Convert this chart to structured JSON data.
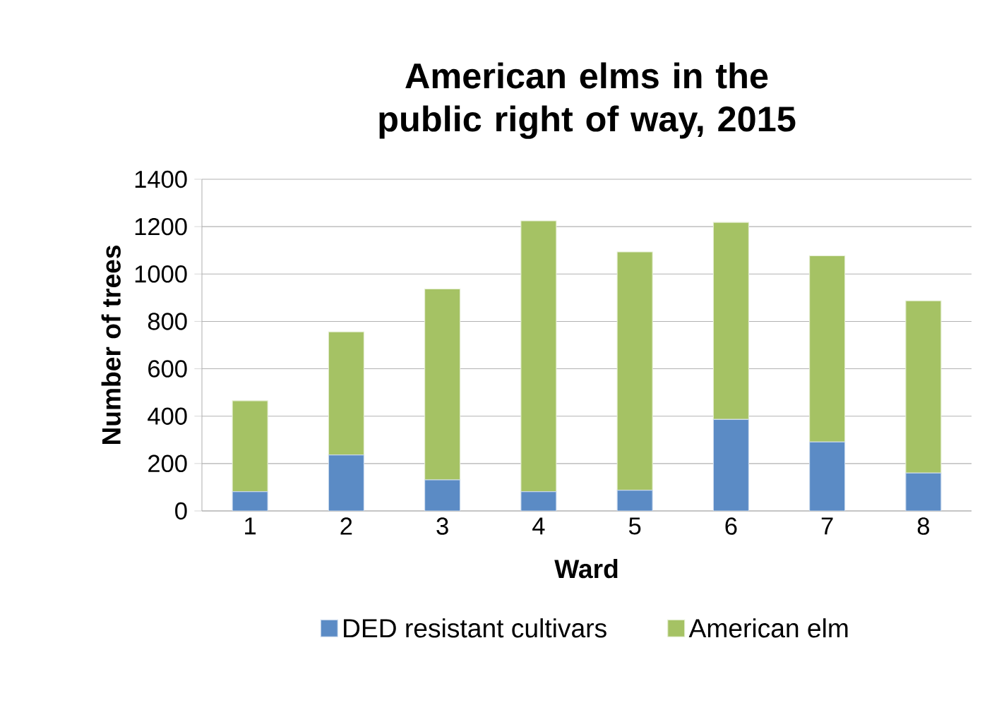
{
  "chart_data": {
    "type": "bar",
    "stacked": true,
    "title": "American elms in the public right of way, 2015",
    "xlabel": "Ward",
    "ylabel": "Number of trees",
    "categories": [
      "1",
      "2",
      "3",
      "4",
      "5",
      "6",
      "7",
      "8"
    ],
    "series": [
      {
        "name": "DED resistant cultivars",
        "color": "#5b8bc5",
        "values": [
          81,
          236,
          131,
          81,
          87,
          386,
          291,
          160
        ]
      },
      {
        "name": "American elm",
        "color": "#a5c264",
        "values": [
          384,
          520,
          806,
          1143,
          1006,
          832,
          786,
          727
        ]
      }
    ],
    "ylim": [
      0,
      1400
    ],
    "yticks": [
      0,
      200,
      400,
      600,
      800,
      1000,
      1200,
      1400
    ],
    "grid": "y",
    "legend": "bottom"
  }
}
